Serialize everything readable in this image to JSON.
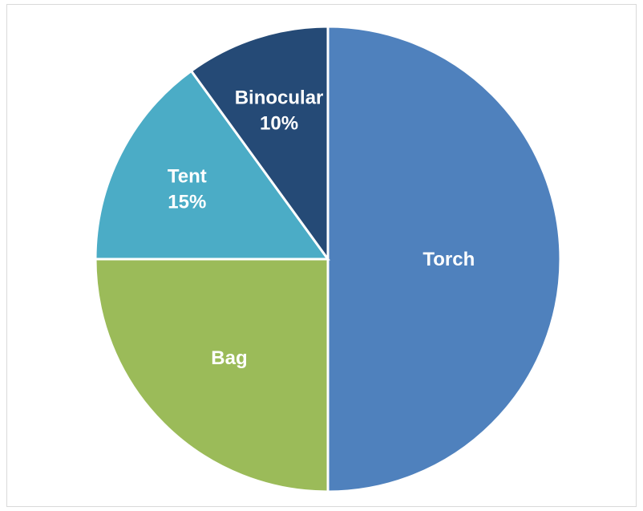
{
  "chart_data": {
    "type": "pie",
    "title": "",
    "slices": [
      {
        "label": "Torch",
        "value": 50,
        "value_label": "",
        "color": "#4f81bd"
      },
      {
        "label": "Bag",
        "value": 25,
        "value_label": "",
        "color": "#9bbb59"
      },
      {
        "label": "Tent",
        "value": 15,
        "value_label": "15%",
        "color": "#4bacc6"
      },
      {
        "label": "Binocular",
        "value": 10,
        "value_label": "10%",
        "color": "#254a76"
      }
    ],
    "start": "12 o'clock",
    "direction": "clockwise",
    "legend": "none"
  }
}
